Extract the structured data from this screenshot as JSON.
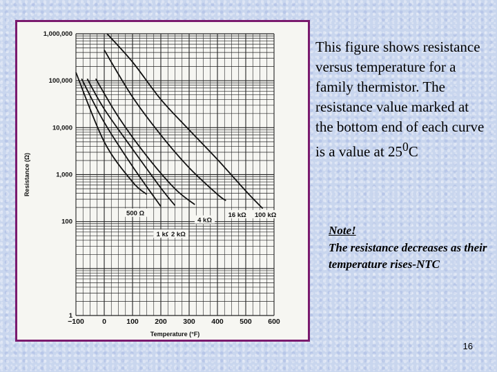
{
  "slide": {
    "description": "This figure shows resistance versus temperature for a family thermistor. The resistance value marked at the bottom end of each curve is a value at 25",
    "description_sup": "0",
    "description_end": "C",
    "note_title": "Note!",
    "note_body": "The resistance decreases as their temperature rises-NTC",
    "page_number": "16"
  },
  "colors": {
    "frame_border": "#7a1a6e",
    "grid": "#222222",
    "curve": "#111111"
  },
  "chart_data": {
    "type": "line",
    "xlabel": "Temperature (°F)",
    "ylabel": "Resistance (Ω)",
    "xlim": [
      -100,
      600
    ],
    "ylim": [
      1,
      1000000
    ],
    "yscale": "log",
    "grid": true,
    "x_ticks": [
      -100,
      0,
      100,
      200,
      300,
      400,
      500,
      600
    ],
    "x_tick_labels": [
      "−100",
      "0",
      "100",
      "200",
      "300",
      "400",
      "500",
      "600"
    ],
    "y_ticks": [
      1,
      100,
      1000,
      10000,
      100000,
      1000000
    ],
    "y_tick_labels": [
      "1",
      "100",
      "1,000",
      "10,000",
      "100,000",
      "1,000,000"
    ],
    "series": [
      {
        "name": "500 Ω",
        "points": [
          [
            -100,
            150000
          ],
          [
            0,
            5000
          ],
          [
            100,
            700
          ],
          [
            150,
            380
          ]
        ]
      },
      {
        "name": "1 kΩ",
        "points": [
          [
            -80,
            110000
          ],
          [
            0,
            13000
          ],
          [
            100,
            1500
          ],
          [
            200,
            210
          ]
        ]
      },
      {
        "name": "2 kΩ",
        "points": [
          [
            -60,
            110000
          ],
          [
            0,
            25000
          ],
          [
            100,
            3500
          ],
          [
            200,
            520
          ],
          [
            250,
            220
          ]
        ]
      },
      {
        "name": "4 kΩ",
        "points": [
          [
            -30,
            110000
          ],
          [
            50,
            17000
          ],
          [
            150,
            2500
          ],
          [
            250,
            500
          ],
          [
            320,
            230
          ]
        ]
      },
      {
        "name": "16 kΩ",
        "points": [
          [
            0,
            450000
          ],
          [
            100,
            45000
          ],
          [
            200,
            7000
          ],
          [
            300,
            1400
          ],
          [
            400,
            380
          ],
          [
            430,
            280
          ]
        ]
      },
      {
        "name": "100 kΩ",
        "points": [
          [
            10,
            1000000
          ],
          [
            100,
            250000
          ],
          [
            200,
            40000
          ],
          [
            300,
            9000
          ],
          [
            400,
            2100
          ],
          [
            500,
            450
          ],
          [
            560,
            190
          ]
        ]
      }
    ],
    "labels": [
      {
        "text": "500 Ω",
        "x": 110,
        "y": 140
      },
      {
        "text": "1 kΩ",
        "x": 210,
        "y": 50
      },
      {
        "text": "2 kΩ",
        "x": 262,
        "y": 50
      },
      {
        "text": "4 kΩ",
        "x": 355,
        "y": 100
      },
      {
        "text": "16 kΩ",
        "x": 470,
        "y": 130
      },
      {
        "text": "100 kΩ",
        "x": 570,
        "y": 130
      }
    ]
  }
}
